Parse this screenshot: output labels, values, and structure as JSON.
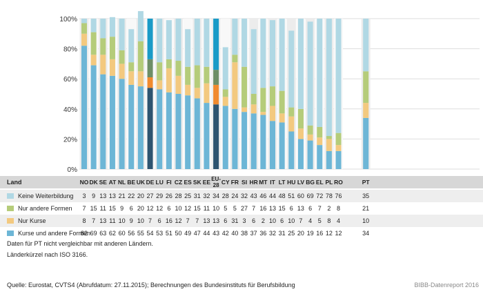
{
  "chart_data": {
    "type": "bar",
    "stacked": true,
    "title": "",
    "xlabel": "",
    "ylabel": "",
    "ylim": [
      0,
      100
    ],
    "y_ticks": [
      "0%",
      "20%",
      "40%",
      "60%",
      "80%",
      "100%"
    ],
    "categories": [
      "NO",
      "DK",
      "SE",
      "AT",
      "NL",
      "BE",
      "UK",
      "DE",
      "LU",
      "FI",
      "CZ",
      "ES",
      "SK",
      "EE",
      "EU-28",
      "CY",
      "FR",
      "SI",
      "HR",
      "MT",
      "IT",
      "LT",
      "HU",
      "LV",
      "BG",
      "EL",
      "PL",
      "RO",
      "PT"
    ],
    "series": [
      {
        "name": "Kurse und andere Formen",
        "color": "#6db6d6",
        "values": [
          82,
          69,
          63,
          62,
          60,
          56,
          55,
          54,
          53,
          51,
          50,
          49,
          47,
          44,
          43,
          42,
          40,
          38,
          37,
          36,
          32,
          31,
          25,
          20,
          19,
          16,
          12,
          12,
          34
        ]
      },
      {
        "name": "Nur Kurse",
        "color": "#f3c97f",
        "values": [
          8,
          7,
          13,
          11,
          10,
          9,
          10,
          7,
          6,
          16,
          12,
          7,
          7,
          13,
          13,
          6,
          31,
          3,
          6,
          2,
          10,
          6,
          10,
          7,
          4,
          5,
          8,
          4,
          10
        ]
      },
      {
        "name": "Nur andere Formen",
        "color": "#b5cc7a",
        "values": [
          7,
          15,
          11,
          15,
          9,
          6,
          20,
          12,
          12,
          6,
          10,
          12,
          15,
          11,
          10,
          5,
          5,
          27,
          7,
          16,
          13,
          15,
          6,
          13,
          6,
          7,
          2,
          8,
          21
        ]
      },
      {
        "name": "Keine Weiterbildung",
        "color": "#b0d8e4",
        "values": [
          3,
          9,
          13,
          13,
          21,
          22,
          20,
          27,
          29,
          26,
          28,
          25,
          31,
          32,
          34,
          28,
          24,
          32,
          43,
          46,
          44,
          48,
          51,
          60,
          69,
          72,
          78,
          76,
          35
        ]
      }
    ],
    "highlight": {
      "DE": [
        "#2e5470",
        "#f18a2e",
        "#6d8e66",
        "#1a9bc7"
      ],
      "EU-28": [
        "#2e5470",
        "#f18a2e",
        "#6d8e66",
        "#1a9bc7"
      ]
    }
  },
  "table": {
    "land_header": "Land"
  },
  "footnotes": {
    "line1": "Daten für PT nicht vergleichbar mit anderen Ländern.",
    "line2": "Länderkürzel nach ISO 3166.",
    "source": "Quelle: Eurostat, CVTS4 (Abrufdatum: 27.11.2015); Berechnungen des Bundesinstituts für Berufsbildung",
    "credit": "BIBB-Datenreport 2016"
  }
}
